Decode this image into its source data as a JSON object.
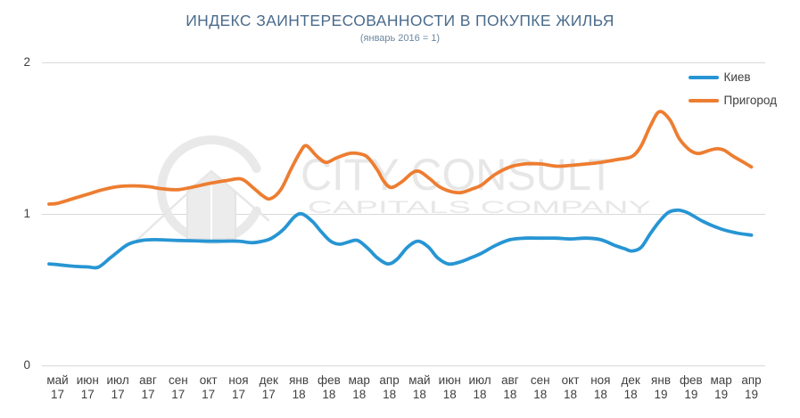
{
  "title": "ИНДЕКС ЗАИНТЕРЕСОВАННОСТИ В ПОКУПКЕ ЖИЛЬЯ",
  "subtitle": "(январь 2016 = 1)",
  "legend": {
    "items": [
      {
        "label": "Киев",
        "color": "#2795d3"
      },
      {
        "label": "Пригород",
        "color": "#ed7d31"
      }
    ]
  },
  "watermark": {
    "line1": "CITY CONSULT",
    "line2": "CAPITALS COMPANY"
  },
  "colors": {
    "kiev_line": "#2795d3",
    "prigorod_line": "#ed7d31",
    "gridline": "#d9d9d9",
    "title_text": "#4a6b8c",
    "subtitle_text": "#6b87a1",
    "axis_text": "#3f3f3f",
    "watermark_gray": "#e7e7e7"
  },
  "chart_data": {
    "type": "line",
    "title": "ИНДЕКС ЗАИНТЕРЕСОВАННОСТИ В ПОКУПКЕ ЖИЛЬЯ",
    "subtitle": "(январь 2016 = 1)",
    "legend_position": "top-right",
    "grid": "horizontal-only",
    "ylim": [
      0,
      2
    ],
    "yticks": [
      0,
      1,
      2
    ],
    "tick_months": [
      "май",
      "июн",
      "июл",
      "авг",
      "сен",
      "окт",
      "ноя",
      "дек",
      "янв",
      "фев",
      "мар",
      "апр",
      "май",
      "июн",
      "июл",
      "авг",
      "сен",
      "окт",
      "ноя",
      "дек",
      "янв",
      "фев",
      "мар",
      "апр"
    ],
    "tick_years": [
      "17",
      "17",
      "17",
      "17",
      "17",
      "17",
      "17",
      "17",
      "18",
      "18",
      "18",
      "18",
      "18",
      "18",
      "18",
      "18",
      "18",
      "18",
      "18",
      "18",
      "19",
      "19",
      "19",
      "19"
    ],
    "series": [
      {
        "name": "Киев",
        "color": "#2795d3",
        "monthly_values": [
          0.66,
          0.65,
          0.75,
          0.83,
          0.82,
          0.82,
          0.82,
          0.84,
          1.0,
          0.82,
          0.82,
          0.67,
          0.82,
          0.67,
          0.74,
          0.83,
          0.84,
          0.84,
          0.83,
          0.76,
          0.97,
          0.99,
          0.9,
          0.86
        ],
        "points": [
          [
            -0.28,
            0.67
          ],
          [
            0,
            0.665
          ],
          [
            0.5,
            0.655
          ],
          [
            1,
            0.65
          ],
          [
            1.35,
            0.648
          ],
          [
            1.75,
            0.71
          ],
          [
            2,
            0.75
          ],
          [
            2.35,
            0.8
          ],
          [
            2.8,
            0.825
          ],
          [
            3.2,
            0.83
          ],
          [
            4,
            0.825
          ],
          [
            5,
            0.82
          ],
          [
            5.5,
            0.82
          ],
          [
            6,
            0.82
          ],
          [
            6.45,
            0.81
          ],
          [
            6.8,
            0.82
          ],
          [
            7.1,
            0.84
          ],
          [
            7.5,
            0.9
          ],
          [
            7.85,
            0.98
          ],
          [
            8.1,
            1.0
          ],
          [
            8.45,
            0.95
          ],
          [
            8.75,
            0.88
          ],
          [
            9.05,
            0.82
          ],
          [
            9.35,
            0.8
          ],
          [
            9.65,
            0.815
          ],
          [
            9.95,
            0.825
          ],
          [
            10.3,
            0.77
          ],
          [
            10.6,
            0.71
          ],
          [
            10.95,
            0.67
          ],
          [
            11.25,
            0.7
          ],
          [
            11.6,
            0.78
          ],
          [
            11.95,
            0.82
          ],
          [
            12.3,
            0.78
          ],
          [
            12.6,
            0.71
          ],
          [
            12.95,
            0.67
          ],
          [
            13.3,
            0.68
          ],
          [
            13.7,
            0.71
          ],
          [
            14.05,
            0.74
          ],
          [
            14.5,
            0.79
          ],
          [
            15,
            0.83
          ],
          [
            15.5,
            0.84
          ],
          [
            16,
            0.84
          ],
          [
            16.5,
            0.84
          ],
          [
            17,
            0.835
          ],
          [
            17.5,
            0.84
          ],
          [
            18,
            0.83
          ],
          [
            18.5,
            0.79
          ],
          [
            18.8,
            0.77
          ],
          [
            19.05,
            0.755
          ],
          [
            19.35,
            0.78
          ],
          [
            19.65,
            0.87
          ],
          [
            19.95,
            0.95
          ],
          [
            20.25,
            1.01
          ],
          [
            20.55,
            1.025
          ],
          [
            20.8,
            1.015
          ],
          [
            21.05,
            0.99
          ],
          [
            21.4,
            0.95
          ],
          [
            22,
            0.9
          ],
          [
            22.5,
            0.875
          ],
          [
            23,
            0.86
          ]
        ]
      },
      {
        "name": "Пригород",
        "color": "#ed7d31",
        "monthly_values": [
          1.07,
          1.13,
          1.18,
          1.18,
          1.16,
          1.2,
          1.23,
          1.1,
          1.41,
          1.35,
          1.4,
          1.18,
          1.28,
          1.15,
          1.19,
          1.31,
          1.33,
          1.32,
          1.34,
          1.38,
          1.67,
          1.41,
          1.42,
          1.31
        ],
        "points": [
          [
            -0.28,
            1.065
          ],
          [
            0,
            1.07
          ],
          [
            0.5,
            1.1
          ],
          [
            1,
            1.13
          ],
          [
            1.5,
            1.16
          ],
          [
            2,
            1.18
          ],
          [
            2.5,
            1.185
          ],
          [
            3,
            1.18
          ],
          [
            3.5,
            1.165
          ],
          [
            4,
            1.16
          ],
          [
            4.55,
            1.18
          ],
          [
            5,
            1.2
          ],
          [
            5.6,
            1.22
          ],
          [
            6.1,
            1.23
          ],
          [
            6.5,
            1.17
          ],
          [
            6.8,
            1.12
          ],
          [
            7.05,
            1.1
          ],
          [
            7.4,
            1.16
          ],
          [
            7.75,
            1.3
          ],
          [
            8.05,
            1.41
          ],
          [
            8.25,
            1.45
          ],
          [
            8.6,
            1.38
          ],
          [
            8.9,
            1.34
          ],
          [
            9.25,
            1.37
          ],
          [
            9.7,
            1.4
          ],
          [
            10.05,
            1.395
          ],
          [
            10.3,
            1.37
          ],
          [
            10.6,
            1.29
          ],
          [
            10.8,
            1.22
          ],
          [
            11.05,
            1.175
          ],
          [
            11.4,
            1.21
          ],
          [
            11.75,
            1.27
          ],
          [
            12,
            1.28
          ],
          [
            12.35,
            1.23
          ],
          [
            12.65,
            1.18
          ],
          [
            13,
            1.15
          ],
          [
            13.35,
            1.14
          ],
          [
            13.75,
            1.165
          ],
          [
            14.05,
            1.19
          ],
          [
            14.5,
            1.26
          ],
          [
            15,
            1.31
          ],
          [
            15.5,
            1.33
          ],
          [
            16,
            1.33
          ],
          [
            16.55,
            1.315
          ],
          [
            17,
            1.32
          ],
          [
            17.55,
            1.33
          ],
          [
            18,
            1.34
          ],
          [
            18.6,
            1.36
          ],
          [
            19.05,
            1.38
          ],
          [
            19.35,
            1.45
          ],
          [
            19.65,
            1.58
          ],
          [
            19.95,
            1.675
          ],
          [
            20.3,
            1.62
          ],
          [
            20.6,
            1.5
          ],
          [
            20.9,
            1.43
          ],
          [
            21.1,
            1.405
          ],
          [
            21.3,
            1.4
          ],
          [
            21.7,
            1.425
          ],
          [
            21.9,
            1.43
          ],
          [
            22.1,
            1.42
          ],
          [
            22.4,
            1.38
          ],
          [
            22.7,
            1.345
          ],
          [
            23,
            1.31
          ]
        ]
      }
    ]
  }
}
